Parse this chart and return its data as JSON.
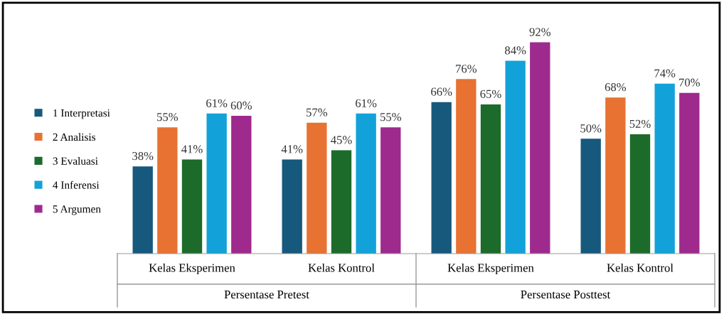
{
  "chart_data": {
    "type": "bar",
    "categories": [
      "Kelas Eksperimen",
      "Kelas Kontrol",
      "Kelas Eksperimen",
      "Kelas Kontrol"
    ],
    "series": [
      {
        "name": "1 Interpretasi",
        "color": "#17597d",
        "values": [
          38,
          41,
          66,
          50
        ],
        "value_labels": [
          "38%",
          "41%",
          "66%",
          "50%"
        ]
      },
      {
        "name": "2 Analisis",
        "color": "#e87232",
        "values": [
          55,
          57,
          76,
          68
        ],
        "value_labels": [
          "55%",
          "57%",
          "76%",
          "68%"
        ]
      },
      {
        "name": "3 Evaluasi",
        "color": "#1c6b2a",
        "values": [
          41,
          45,
          65,
          52
        ],
        "value_labels": [
          "41%",
          "45%",
          "65%",
          "52%"
        ]
      },
      {
        "name": "4 Inferensi",
        "color": "#12a2d9",
        "values": [
          61,
          61,
          84,
          74
        ],
        "value_labels": [
          "61%",
          "61%",
          "84%",
          "74%"
        ]
      },
      {
        "name": "5 Argumen",
        "color": "#9e2a8e",
        "values": [
          60,
          55,
          92,
          70
        ],
        "value_labels": [
          "60%",
          "55%",
          "92%",
          "70%"
        ]
      }
    ],
    "annotations": [
      "Persentase Pretest",
      "Persentase Posttest"
    ],
    "legend": "left"
  }
}
